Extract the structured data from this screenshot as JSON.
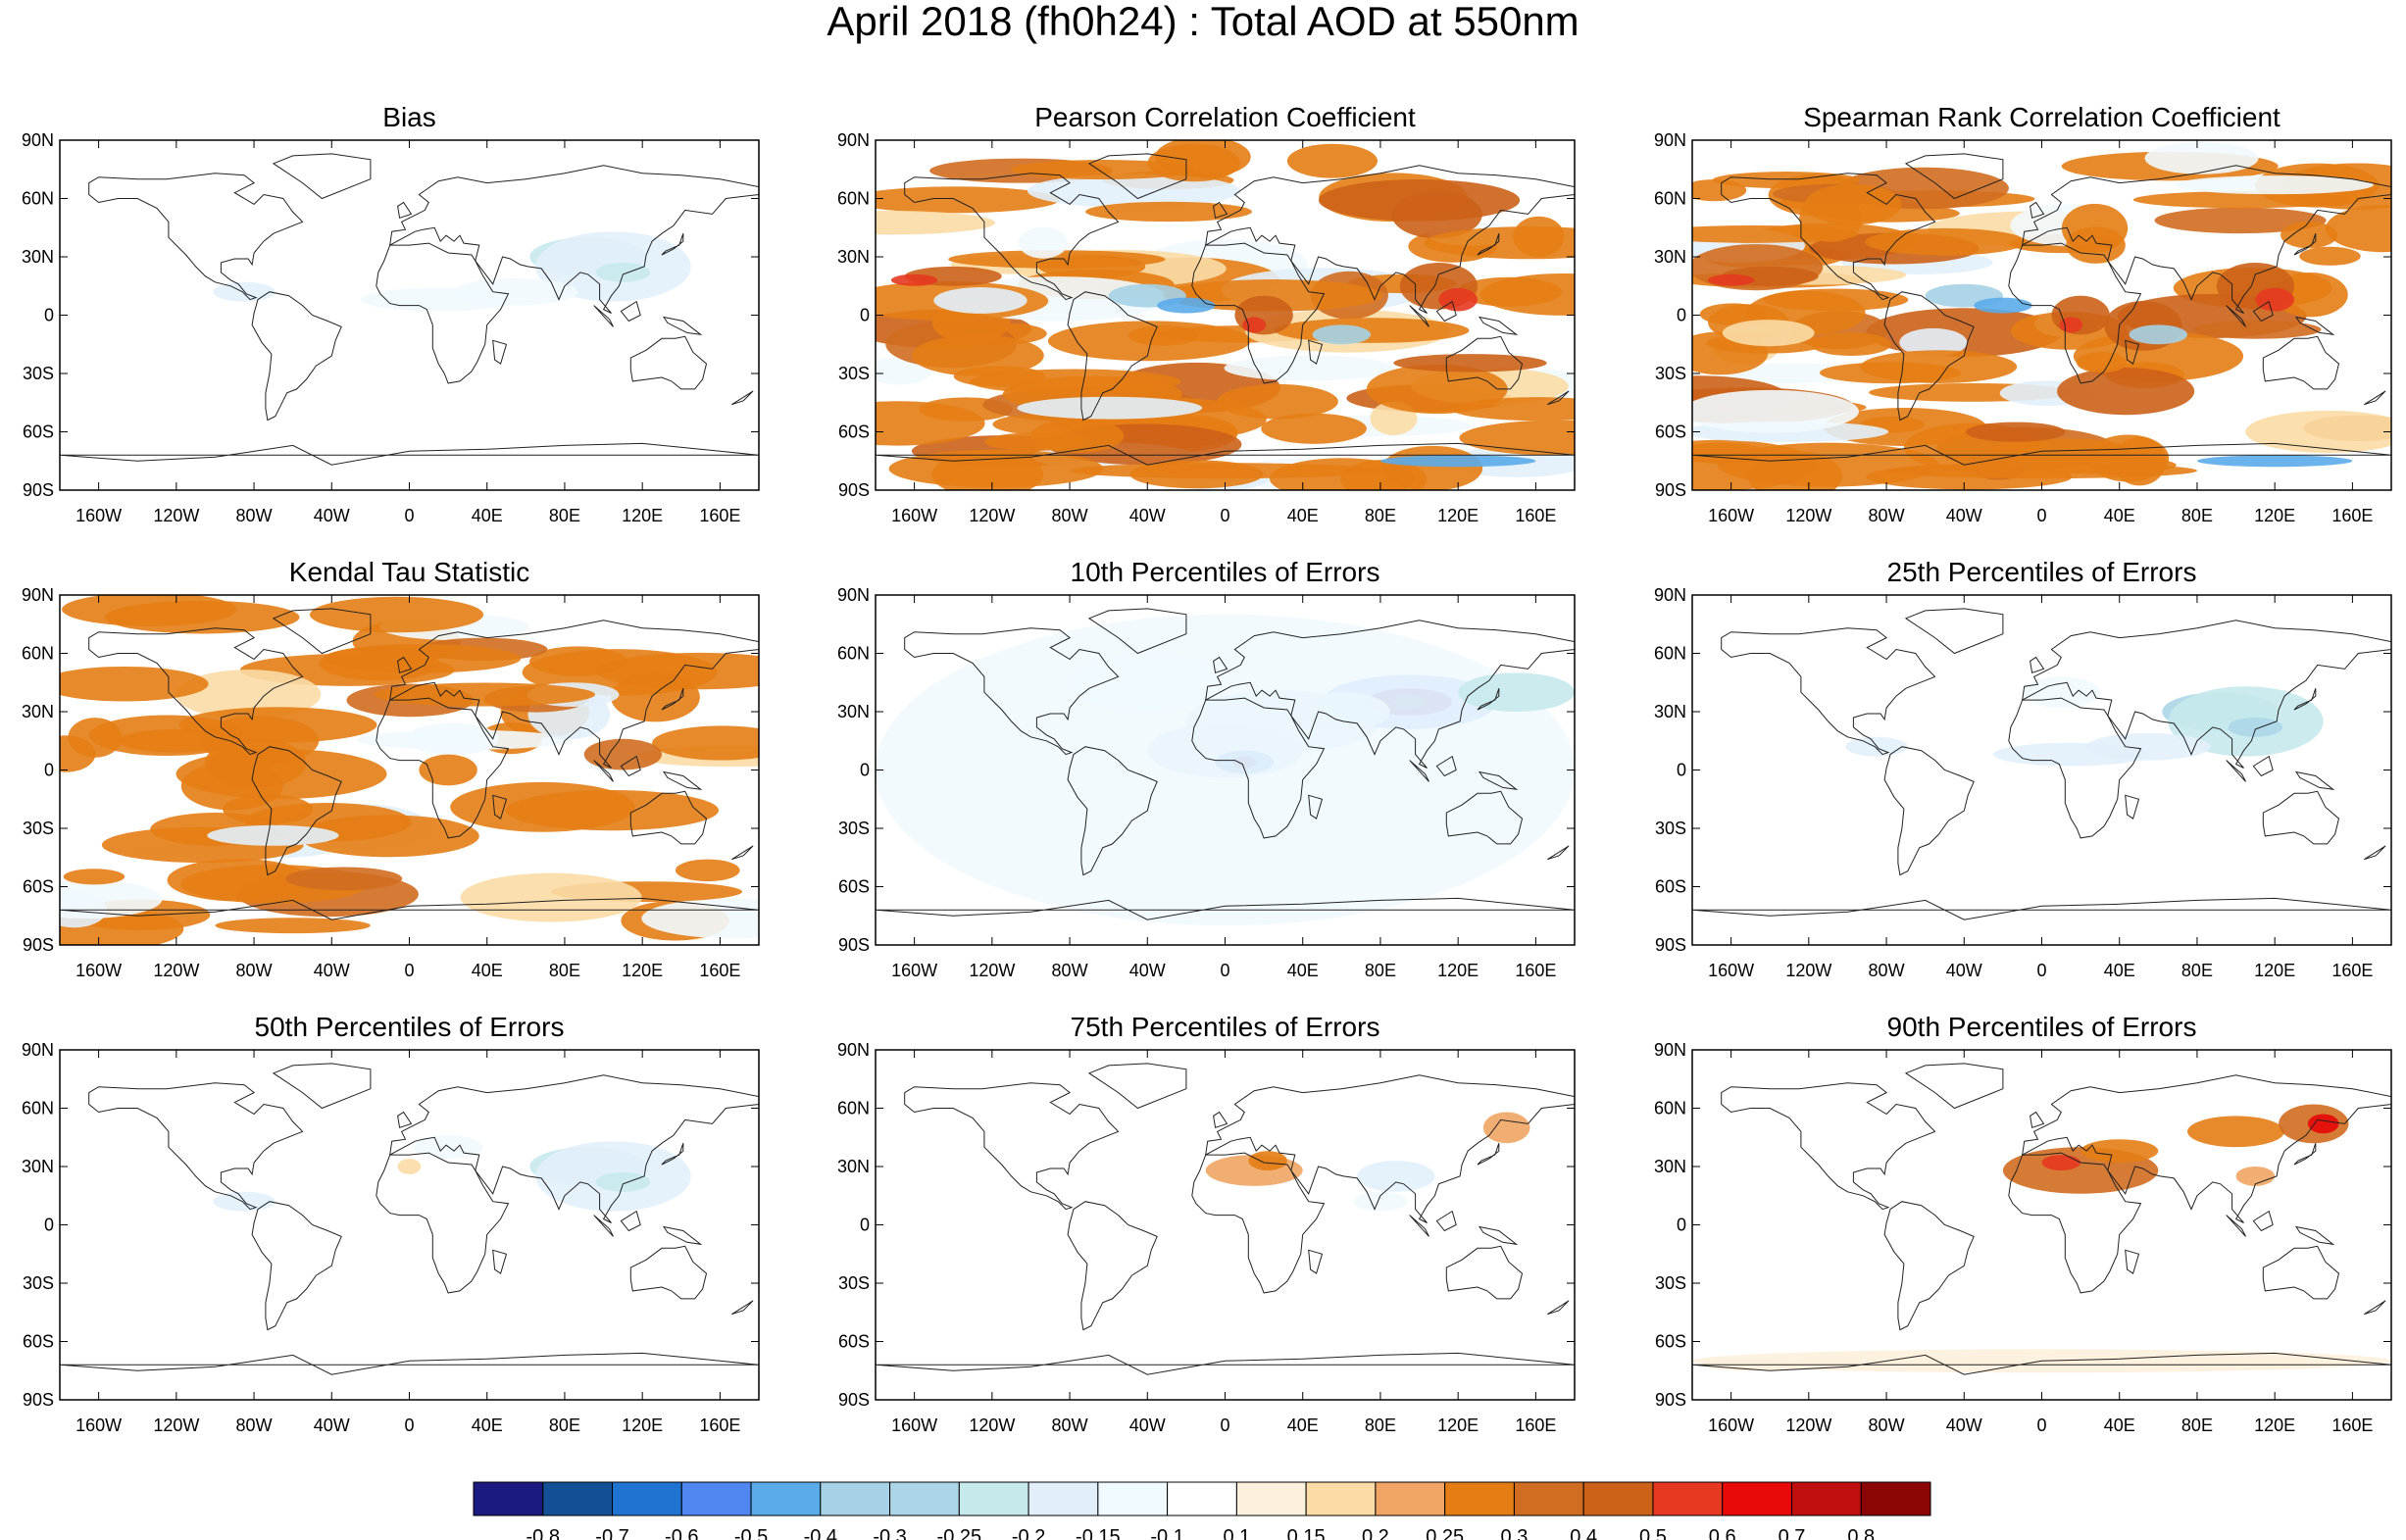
{
  "title": "April 2018 (fh0h24) : Total AOD at 550nm",
  "lat_labels": [
    "90N",
    "60N",
    "30N",
    "0",
    "30S",
    "60S",
    "90S"
  ],
  "lon_labels": [
    "160W",
    "120W",
    "80W",
    "40W",
    "0",
    "40E",
    "80E",
    "120E",
    "160E"
  ],
  "panels": [
    {
      "title": "Bias",
      "style": "bias"
    },
    {
      "title": "Pearson Correlation Coefficient",
      "style": "corr"
    },
    {
      "title": "Spearman Rank Correlation Coefficient",
      "style": "corr"
    },
    {
      "title": "Kendal Tau Statistic",
      "style": "tau"
    },
    {
      "title": "10th Percentiles of Errors",
      "style": "p10"
    },
    {
      "title": "25th Percentiles of Errors",
      "style": "p25"
    },
    {
      "title": "50th Percentiles of Errors",
      "style": "p50"
    },
    {
      "title": "75th Percentiles of Errors",
      "style": "p75"
    },
    {
      "title": "90th Percentiles of Errors",
      "style": "p90"
    }
  ],
  "colorbar": {
    "labels": [
      "-0.8",
      "-0.7",
      "-0.6",
      "-0.5",
      "-0.4",
      "-0.3",
      "-0.25",
      "-0.2",
      "-0.15",
      "-0.1",
      "0.1",
      "0.15",
      "0.2",
      "0.25",
      "0.3",
      "0.4",
      "0.5",
      "0.6",
      "0.7",
      "0.8"
    ],
    "colors": [
      "#1a1a80",
      "#124f96",
      "#1f74d2",
      "#4f86f0",
      "#5aabea",
      "#a5d2e6",
      "#acd6e8",
      "#c6e9ec",
      "#e2effb",
      "#f1fafe",
      "#ffffff",
      "#fdf0dc",
      "#fbdba6",
      "#f0a564",
      "#e47d14",
      "#d06d20",
      "#cc6218",
      "#e63820",
      "#e80808",
      "#c10e0e",
      "#8c0505"
    ]
  }
}
